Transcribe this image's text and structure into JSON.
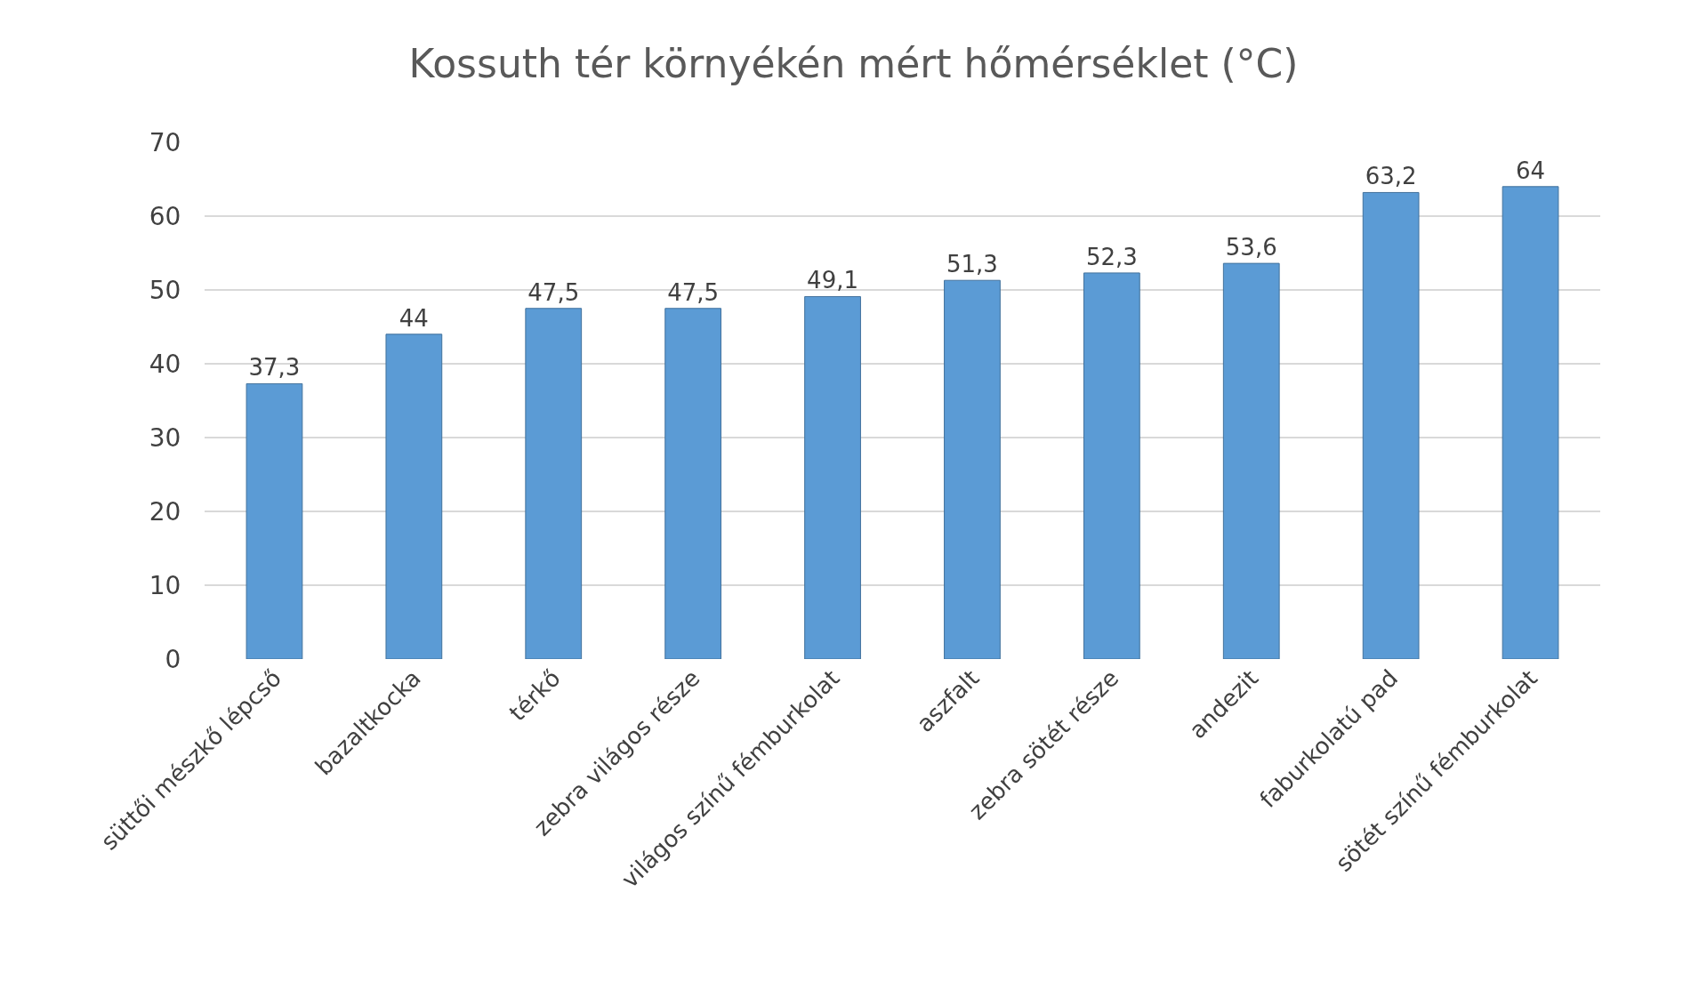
{
  "chart_data": {
    "type": "bar",
    "title": "Kossuth tér környékén mért hőmérséklet (°C)",
    "categories": [
      "süttői mészkő lépcső",
      "bazaltkocka",
      "térkő",
      "zebra világos része",
      "világos színű fémburkolat",
      "aszfalt",
      "zebra sötét része",
      "andezit",
      "faburkolatú pad",
      "sötét színű fémburkolat"
    ],
    "values": [
      37.3,
      44,
      47.5,
      47.5,
      49.1,
      51.3,
      52.3,
      53.6,
      63.2,
      64
    ],
    "value_labels": [
      "37,3",
      "44",
      "47,5",
      "47,5",
      "49,1",
      "51,3",
      "52,3",
      "53,6",
      "63,2",
      "64"
    ],
    "color": "#5b9bd5",
    "ylim": [
      0,
      70
    ],
    "yticks": [
      0,
      10,
      20,
      30,
      40,
      50,
      60,
      70
    ],
    "grid": "y",
    "legend": false
  }
}
